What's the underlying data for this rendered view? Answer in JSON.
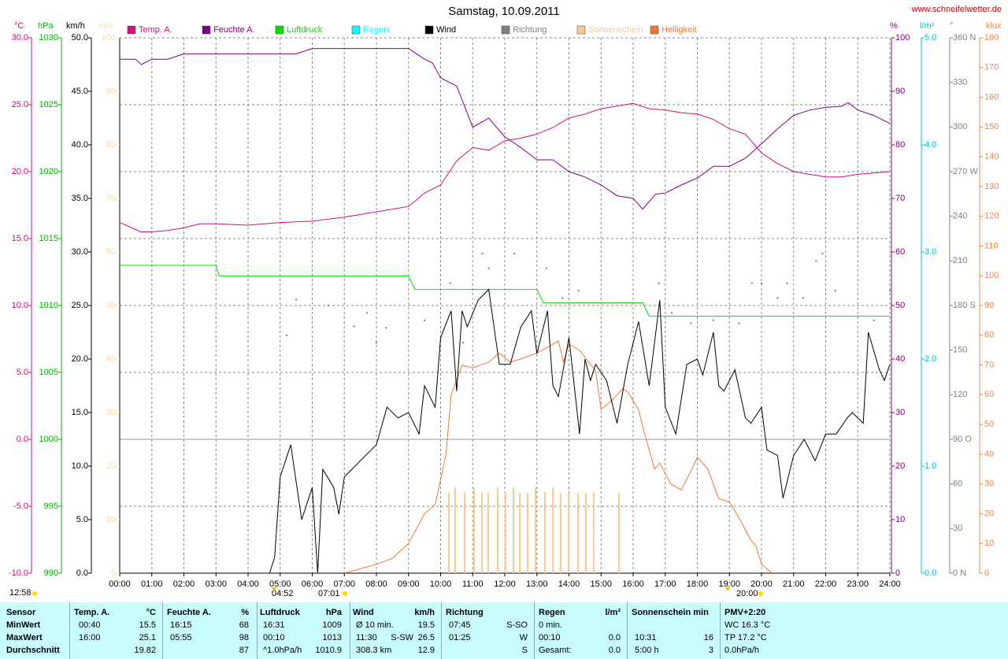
{
  "chart_data": {
    "type": "line",
    "title": "Samstag, 10.09.2011",
    "source": "www.schneifelwetter.de",
    "grid": true,
    "xlim": [
      0,
      24
    ],
    "xticks": [
      {
        "value": 0,
        "label": "00:00"
      },
      {
        "value": 1,
        "label": "01:00"
      },
      {
        "value": 2,
        "label": "02:00"
      },
      {
        "value": 3,
        "label": "03:00"
      },
      {
        "value": 4,
        "label": "04:00"
      },
      {
        "value": 5,
        "label": "05:00"
      },
      {
        "value": 6,
        "label": "06:00"
      },
      {
        "value": 7,
        "label": "07:00"
      },
      {
        "value": 8,
        "label": "08:00"
      },
      {
        "value": 9,
        "label": "09:00"
      },
      {
        "value": 10,
        "label": "10:00"
      },
      {
        "value": 11,
        "label": "11:00"
      },
      {
        "value": 12,
        "label": "12:00"
      },
      {
        "value": 13,
        "label": "13:00"
      },
      {
        "value": 14,
        "label": "14:00"
      },
      {
        "value": 15,
        "label": "15:00"
      },
      {
        "value": 16,
        "label": "16:00"
      },
      {
        "value": 17,
        "label": "17:00"
      },
      {
        "value": 18,
        "label": "18:00"
      },
      {
        "value": 19,
        "label": "19:00"
      },
      {
        "value": 20,
        "label": "20:00"
      },
      {
        "value": 21,
        "label": "21:00"
      },
      {
        "value": 22,
        "label": "22:00"
      },
      {
        "value": 23,
        "label": "23:00"
      },
      {
        "value": 24,
        "label": "24:00"
      }
    ],
    "axes": [
      {
        "unit": "°C",
        "color": "#e0007f",
        "lim": [
          -10,
          30
        ],
        "ticks": [
          {
            "value": -10,
            "label": "-10.0"
          },
          {
            "value": -5,
            "label": "-5.0"
          },
          {
            "value": 0,
            "label": "0.0"
          },
          {
            "value": 5,
            "label": "5.0"
          },
          {
            "value": 10,
            "label": "10.0"
          },
          {
            "value": 15,
            "label": "15.0"
          },
          {
            "value": 20,
            "label": "20.0"
          },
          {
            "value": 25,
            "label": "25.0"
          },
          {
            "value": 30,
            "label": "30.0"
          }
        ]
      },
      {
        "unit": "hPa",
        "color": "#00b000",
        "lim": [
          990,
          1030
        ],
        "ticks": [
          990,
          995,
          1000,
          1005,
          1010,
          1015,
          1020,
          1025,
          1030
        ]
      },
      {
        "unit": "km/h",
        "color": "#000000",
        "lim": [
          0,
          50
        ],
        "ticks": [
          {
            "value": 0,
            "label": "0.0"
          },
          {
            "value": 5,
            "label": "5.0"
          },
          {
            "value": 10,
            "label": "10.0"
          },
          {
            "value": 15,
            "label": "15.0"
          },
          {
            "value": 20,
            "label": "20.0"
          },
          {
            "value": 25,
            "label": "25.0"
          },
          {
            "value": 30,
            "label": "30.0"
          },
          {
            "value": 35,
            "label": "35.0"
          },
          {
            "value": 40,
            "label": "40.0"
          },
          {
            "value": 45,
            "label": "45.0"
          },
          {
            "value": 50,
            "label": "50.0"
          }
        ]
      },
      {
        "unit": "min",
        "color": "#f8d8a8",
        "lim": [
          0,
          100
        ],
        "ticks": [
          0,
          10,
          20,
          30,
          40,
          50,
          60,
          70,
          80,
          90,
          100
        ]
      },
      {
        "unit": "%",
        "color": "#800080",
        "lim": [
          0,
          100
        ],
        "ticks": [
          0,
          10,
          20,
          30,
          40,
          50,
          60,
          70,
          80,
          90,
          100
        ]
      },
      {
        "unit": "l/m²",
        "color": "#00c0c0",
        "lim": [
          0,
          5
        ],
        "ticks": [
          {
            "value": 0,
            "label": "0.0"
          },
          {
            "value": 1,
            "label": "1.0"
          },
          {
            "value": 2,
            "label": "2.0"
          },
          {
            "value": 3,
            "label": "3.0"
          },
          {
            "value": 4,
            "label": "4.0"
          },
          {
            "value": 5,
            "label": "5.0"
          }
        ]
      },
      {
        "unit": "°",
        "color": "#808080",
        "lim": [
          0,
          360
        ],
        "ticks": [
          {
            "value": 0,
            "label": "0 N"
          },
          30,
          60,
          {
            "value": 90,
            "label": "90 O"
          },
          120,
          150,
          {
            "value": 180,
            "label": "180 S"
          },
          210,
          240,
          {
            "value": 270,
            "label": "270 W"
          },
          300,
          330,
          {
            "value": 360,
            "label": "360 N"
          }
        ]
      },
      {
        "unit": "klux",
        "color": "#ff8040",
        "lim": [
          0,
          180
        ],
        "ticks": [
          0,
          10,
          20,
          30,
          40,
          50,
          60,
          70,
          80,
          90,
          100,
          110,
          120,
          130,
          140,
          150,
          160,
          170,
          180
        ]
      }
    ],
    "series": [
      {
        "name": "Temp. A.",
        "color": "#d0107f",
        "axis": 0,
        "kind": "line",
        "x": [
          0,
          0.67,
          1,
          1.5,
          2,
          2.5,
          3,
          4,
          5,
          6,
          7,
          8,
          9,
          9.5,
          10,
          10.5,
          11,
          11.5,
          12,
          12.5,
          13,
          13.5,
          14,
          14.5,
          15,
          15.5,
          16,
          16.5,
          17,
          17.5,
          18,
          18.5,
          19,
          19.5,
          20,
          20.5,
          21,
          21.5,
          22,
          22.5,
          23,
          23.5,
          24
        ],
        "values": [
          16.2,
          15.5,
          15.5,
          15.6,
          15.8,
          16.1,
          16.1,
          16,
          16.2,
          16.3,
          16.6,
          17,
          17.4,
          18.4,
          19.0,
          20.8,
          21.8,
          21.6,
          22.3,
          22.5,
          22.8,
          23.3,
          24.0,
          24.3,
          24.7,
          24.9,
          25.1,
          24.7,
          24.6,
          24.4,
          24.3,
          23.9,
          23.2,
          22.8,
          21.4,
          20.6,
          20.0,
          19.8,
          19.6,
          19.6,
          19.8,
          19.9,
          20.0
        ]
      },
      {
        "name": "Feuchte A.",
        "color": "#800080",
        "axis": 4,
        "kind": "line",
        "x": [
          0,
          0.5,
          0.67,
          1,
          1.5,
          2,
          5.5,
          6,
          9,
          9.5,
          9.75,
          10,
          10.5,
          11,
          11.5,
          12,
          12.5,
          13,
          13.5,
          14,
          14.5,
          15,
          15.5,
          16,
          16.3,
          16.7,
          17,
          17.5,
          18,
          18.5,
          19,
          19.5,
          20,
          20.5,
          21,
          21.5,
          22,
          22.5,
          22.7,
          23,
          23.5,
          24
        ],
        "values": [
          96,
          96,
          95,
          96,
          96,
          97,
          97,
          98,
          98,
          96,
          95.3,
          92.5,
          91,
          83.3,
          85,
          81.5,
          79.5,
          77.2,
          77.2,
          75,
          74,
          72.5,
          70.5,
          70,
          68,
          70.8,
          71,
          72.5,
          73.8,
          76,
          76,
          77.5,
          80.2,
          83,
          85.5,
          86.5,
          87,
          87.2,
          87.9,
          86.5,
          85.5,
          84
        ]
      },
      {
        "name": "Luftdruck",
        "color": "#00e000",
        "axis": 1,
        "kind": "line",
        "x": [
          0,
          3,
          3.1,
          9,
          9.2,
          13,
          13.2,
          16.3,
          16.5,
          24
        ],
        "values": [
          1013,
          1013,
          1012.2,
          1012.2,
          1011.2,
          1011.2,
          1010.2,
          1010.2,
          1009.2,
          1009.2
        ]
      },
      {
        "name": "Regen",
        "color": "#00ffff",
        "axis": 5,
        "kind": "bar"
      },
      {
        "name": "Wind",
        "color": "#000000",
        "axis": 2,
        "kind": "line",
        "x": [
          4.67,
          4.83,
          5,
          5.33,
          5.67,
          6,
          6.17,
          6.33,
          6.67,
          6.83,
          7,
          7.5,
          8,
          8.33,
          8.67,
          9,
          9.33,
          9.5,
          9.83,
          10,
          10.33,
          10.5,
          10.67,
          10.83,
          11.17,
          11.5,
          11.83,
          12.17,
          12.5,
          12.83,
          13,
          13.33,
          13.5,
          13.67,
          14,
          14.33,
          14.5,
          14.67,
          14.83,
          15.17,
          15.5,
          15.83,
          16.17,
          16.5,
          16.83,
          17,
          17.33,
          17.67,
          18,
          18.17,
          18.5,
          18.67,
          18.83,
          19.17,
          19.5,
          19.67,
          20,
          20.17,
          20.5,
          20.67,
          21,
          21.33,
          21.67,
          22,
          22.33,
          22.67,
          22.83,
          23.17,
          23.33,
          23.67,
          23.83,
          24
        ],
        "values": [
          0,
          1.5,
          9,
          12,
          5,
          8,
          0,
          9.7,
          8,
          5.5,
          9,
          10.5,
          12,
          15.5,
          14.5,
          15,
          13,
          17.5,
          15.5,
          22,
          24.5,
          17,
          24.5,
          23,
          25.5,
          26.5,
          19.5,
          19.5,
          23,
          24.5,
          20.5,
          24.5,
          17.5,
          16.5,
          22,
          13,
          20,
          18,
          19.5,
          18,
          14,
          19.5,
          23.5,
          17.5,
          25.5,
          15.5,
          13,
          19.5,
          20,
          18.5,
          22.5,
          17.5,
          17,
          19,
          14.5,
          14,
          15.5,
          11.5,
          11,
          7,
          11,
          12.5,
          10.5,
          13,
          13,
          14.5,
          15,
          14,
          22.5,
          19,
          18,
          19.5
        ]
      },
      {
        "name": "Richtung",
        "color": "#808080",
        "axis": 6,
        "kind": "scatter",
        "x": [
          5.2,
          5.5,
          6.5,
          7.3,
          7.7,
          8,
          8.3,
          9.5,
          10.3,
          10.7,
          11.3,
          11.5,
          12.3,
          13.3,
          13.8,
          14.3,
          16.8,
          17.2,
          17.8,
          18.5,
          19.3,
          19.7,
          20,
          20.5,
          20.8,
          21.3,
          21.7,
          21.9,
          22.3,
          23.5,
          24
        ],
        "values": [
          160,
          184,
          180,
          166,
          175,
          155,
          165,
          170,
          195,
          155,
          215,
          205,
          215,
          205,
          185,
          190,
          195,
          175,
          168,
          170,
          168,
          195,
          195,
          185,
          195,
          185,
          210,
          215,
          190,
          170,
          190
        ]
      },
      {
        "name": "Sonnenschein",
        "color": "#f8c890",
        "axis": 3,
        "kind": "bar",
        "x": [
          10.26,
          10.45,
          10.75,
          11.04,
          11.29,
          11.48,
          11.78,
          12.02,
          12.27,
          12.47,
          12.71,
          12.96,
          13.25,
          13.5,
          13.74,
          13.99,
          14.28,
          14.53,
          14.77,
          15.56
        ],
        "values": [
          15,
          16,
          15,
          16,
          15,
          15,
          16,
          15,
          16,
          15,
          15,
          16,
          15,
          16,
          15,
          15,
          15,
          15,
          15,
          15
        ]
      },
      {
        "name": "Helligkeit",
        "color": "#f07838",
        "axis": 7,
        "kind": "line",
        "x": [
          7,
          8,
          8.5,
          9,
          9.5,
          9.83,
          10.17,
          10.33,
          10.67,
          11,
          11.5,
          11.83,
          12.17,
          12.5,
          13,
          13.33,
          13.67,
          13.83,
          14,
          14.33,
          14.83,
          15,
          15.33,
          15.67,
          15.83,
          16.17,
          16.33,
          16.67,
          16.83,
          17.17,
          17.5,
          17.83,
          18,
          18.33,
          18.67,
          19,
          19.33,
          19.67,
          19.83,
          20,
          20.33
        ],
        "values": [
          0,
          3,
          5,
          10,
          20,
          23,
          40,
          60,
          70,
          69,
          71,
          74,
          71,
          72,
          74,
          76,
          78,
          71,
          77,
          75,
          68,
          55,
          58,
          62,
          61,
          55,
          48,
          35,
          37,
          30,
          28,
          35,
          39,
          35,
          25,
          24,
          18,
          11,
          9,
          3,
          0
        ]
      }
    ],
    "annotations": [
      "04:52",
      "07:01",
      "20:00",
      "12:58"
    ]
  },
  "table": {
    "header": [
      "Sensor",
      "Temp. A.",
      "°C",
      "Feuchte A.",
      "%",
      "Luftdruck",
      "hPa",
      "Wind",
      null,
      "km/h",
      "Richtung",
      null,
      "Regen",
      "l/m²",
      "Sonnenschein min",
      null,
      "PMV+2:20"
    ],
    "rows": [
      [
        "MinWert",
        "00:40",
        "15.5",
        "16:15",
        "68",
        "16:31",
        "1009",
        "Ø 10 min.",
        null,
        "19.5",
        "07:45",
        "S-SO",
        "0 min.",
        null,
        null,
        null,
        "WC 16.3 °C"
      ],
      [
        "MaxWert",
        "16:00",
        "25.1",
        "05:55",
        "98",
        "00:10",
        "1013",
        "11:30",
        "S-SW",
        "26.5",
        "01:25",
        "W",
        "00:10",
        "0.0",
        "10:31",
        "16",
        "TP 17.2 °C"
      ],
      [
        "Durchschnitt",
        null,
        "19.82",
        null,
        "87",
        "^1.0hPa/h",
        "1010.9",
        "308.3 km",
        null,
        "12.9",
        null,
        "S",
        "Gesamt:",
        "0.0",
        "5:00 h",
        "3",
        "0.0hPa/h"
      ]
    ]
  }
}
